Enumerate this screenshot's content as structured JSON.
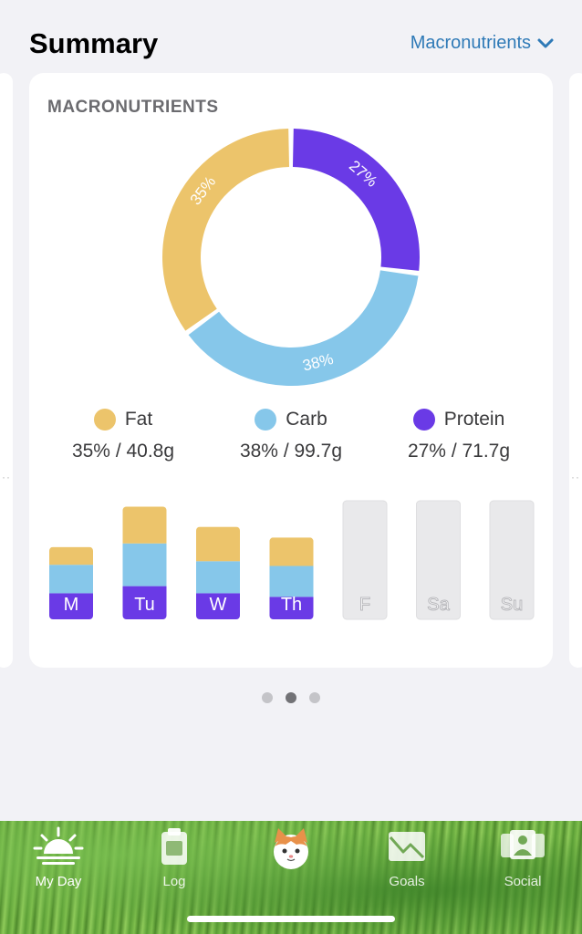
{
  "header": {
    "title": "Summary",
    "selector_label": "Macronutrients",
    "selector_icon": "chevron-down-icon"
  },
  "card": {
    "title": "MACRONUTRIENTS"
  },
  "colors": {
    "fat": "#ecc46b",
    "carb": "#86c7ea",
    "protein": "#6a3ae6",
    "future": "#e9e9eb",
    "link": "#2f7ab7"
  },
  "chart_data": {
    "type": "pie",
    "series": [
      {
        "name": "Fat",
        "percent": 35,
        "label": "35%",
        "grams": "40.8g",
        "summary": "35% / 40.8g"
      },
      {
        "name": "Carb",
        "percent": 38,
        "label": "38%",
        "grams": "99.7g",
        "summary": "38% / 99.7g"
      },
      {
        "name": "Protein",
        "percent": 27,
        "label": "27%",
        "grams": "71.7g",
        "summary": "27% / 71.7g"
      }
    ],
    "weekly": {
      "type": "bar",
      "days": [
        {
          "label": "M",
          "protein": 0.22,
          "carb": 0.24,
          "fat": 0.15,
          "empty": false
        },
        {
          "label": "Tu",
          "protein": 0.28,
          "carb": 0.36,
          "fat": 0.31,
          "empty": false
        },
        {
          "label": "W",
          "protein": 0.22,
          "carb": 0.27,
          "fat": 0.29,
          "empty": false
        },
        {
          "label": "Th",
          "protein": 0.19,
          "carb": 0.26,
          "fat": 0.24,
          "empty": false
        },
        {
          "label": "F",
          "empty": true
        },
        {
          "label": "Sa",
          "empty": true
        },
        {
          "label": "Su",
          "empty": true
        }
      ]
    }
  },
  "pagination": {
    "count": 3,
    "active": 1
  },
  "tabs": [
    {
      "label": "My Day",
      "icon": "sunrise-icon",
      "active": true
    },
    {
      "label": "Log",
      "icon": "clipboard-icon",
      "active": false
    },
    {
      "label": "",
      "icon": "cat-avatar-icon",
      "active": false
    },
    {
      "label": "Goals",
      "icon": "chart-envelope-icon",
      "active": false
    },
    {
      "label": "Social",
      "icon": "people-icon",
      "active": false
    }
  ]
}
